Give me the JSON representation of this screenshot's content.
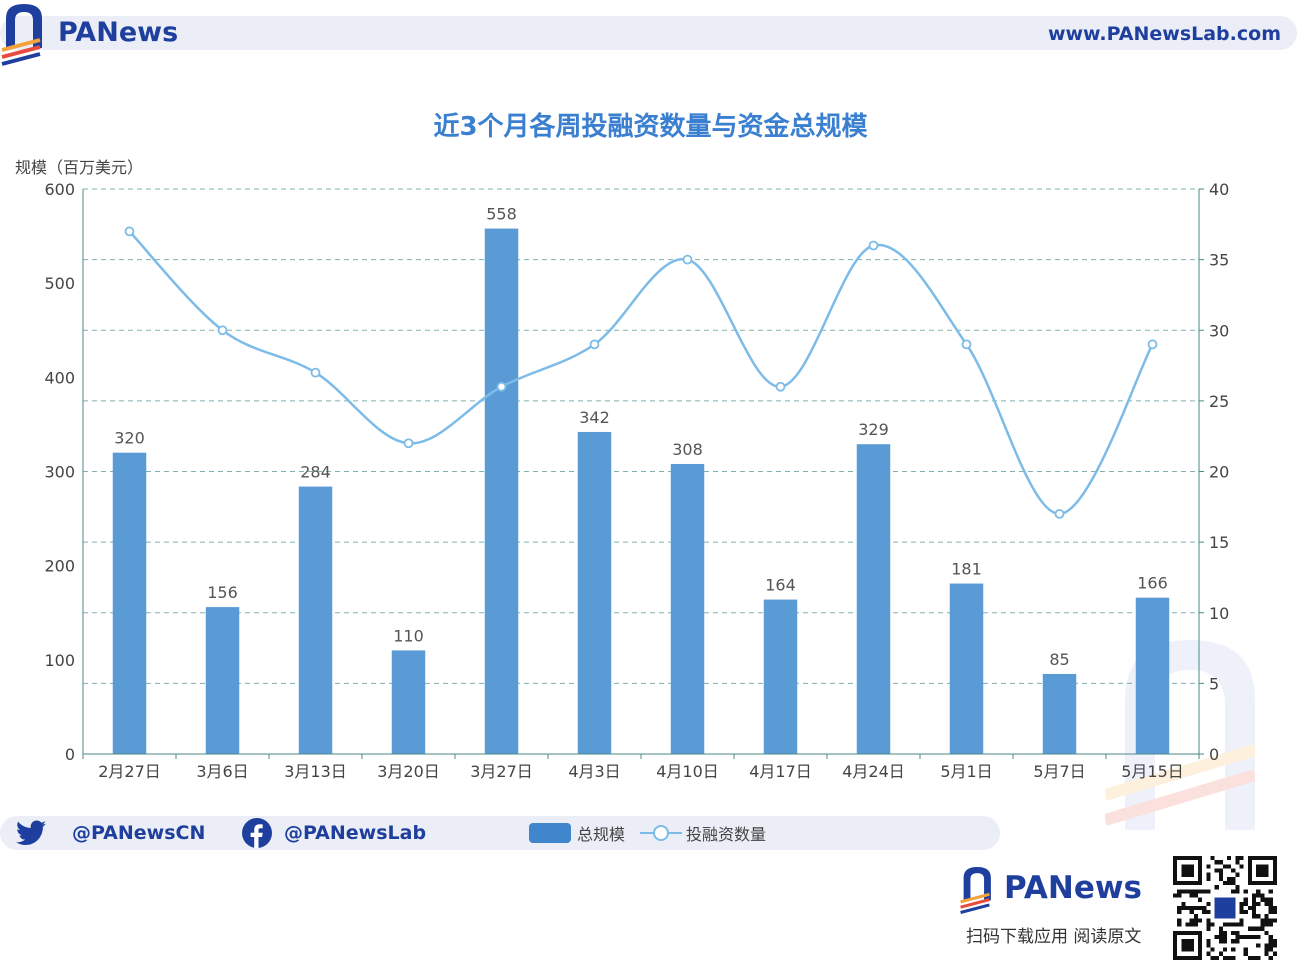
{
  "brand": {
    "name_pa": "PA",
    "name_news": "News",
    "url": "www.PANewsLab.com"
  },
  "chart_data": {
    "type": "bar+line",
    "title": "近3个月各周投融资数量与资金总规模",
    "ylabel_left": "规模（百万美元）",
    "ylim_left": [
      0,
      600
    ],
    "yticks_left": [
      0,
      100,
      200,
      300,
      400,
      500,
      600
    ],
    "ylim_right": [
      0,
      40
    ],
    "yticks_right": [
      0,
      5,
      10,
      15,
      20,
      25,
      30,
      35,
      40
    ],
    "categories": [
      "2月27日",
      "3月6日",
      "3月13日",
      "3月20日",
      "3月27日",
      "4月3日",
      "4月10日",
      "4月17日",
      "4月24日",
      "5月1日",
      "5月7日",
      "5月15日"
    ],
    "series": [
      {
        "name": "总规模",
        "type": "bar",
        "axis": "left",
        "color": "#5b9bd5",
        "values": [
          320,
          156,
          284,
          110,
          558,
          342,
          308,
          164,
          329,
          181,
          85,
          166
        ]
      },
      {
        "name": "投融资数量",
        "type": "line",
        "axis": "right",
        "color": "#7dbbe8",
        "values": [
          37,
          30,
          27,
          22,
          26,
          29,
          35,
          26,
          36,
          29,
          17,
          29
        ]
      }
    ],
    "grid": true,
    "legend": "bottom"
  },
  "footer": {
    "twitter": "@PANewsCN",
    "facebook": "@PANewsLab",
    "logo_pa": "PA",
    "logo_news": "News",
    "slogan": "扫码下载应用  阅读原文"
  },
  "icons": {
    "twitter": "twitter-icon",
    "facebook": "facebook-icon",
    "qr": "qr-code-icon",
    "brand": "panews-logo-icon"
  }
}
